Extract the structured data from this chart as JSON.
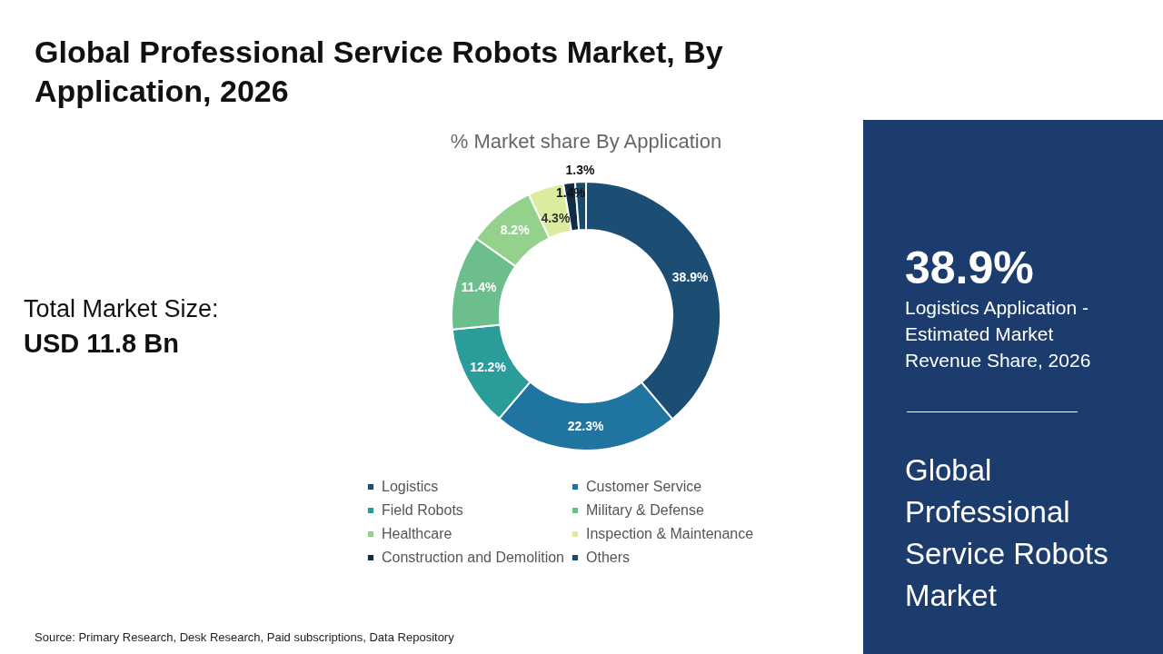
{
  "chart_data": {
    "type": "donut",
    "title": "Global Professional Service Robots Market, By Application, 2026",
    "subtitle": "% Market share By Application",
    "categories": [
      "Logistics",
      "Customer Service",
      "Field Robots",
      "Military & Defense",
      "Healthcare",
      "Inspection & Maintenance",
      "Construction and Demolition",
      "Others"
    ],
    "values": [
      38.9,
      22.3,
      12.2,
      11.4,
      8.2,
      4.3,
      1.4,
      1.3
    ],
    "colors": [
      "#1c4e74",
      "#1f74a0",
      "#2a9c9a",
      "#6cbf8c",
      "#93d18c",
      "#dcec9f",
      "#0f2d44",
      "#174a6b"
    ],
    "value_labels": [
      "38.9%",
      "22.3%",
      "12.2%",
      "11.4%",
      "8.2%",
      "4.3%",
      "1.4%",
      "1.3%"
    ],
    "legend": "bottom",
    "annotations": [
      "Total Market Size:",
      "USD 11.8 Bn",
      "38.9%",
      "Logistics Application - Estimated Market Revenue Share, 2026",
      "Global Professional Service Robots Market",
      "Source: Primary Research, Desk Research, Paid subscriptions, Data Repository"
    ]
  }
}
